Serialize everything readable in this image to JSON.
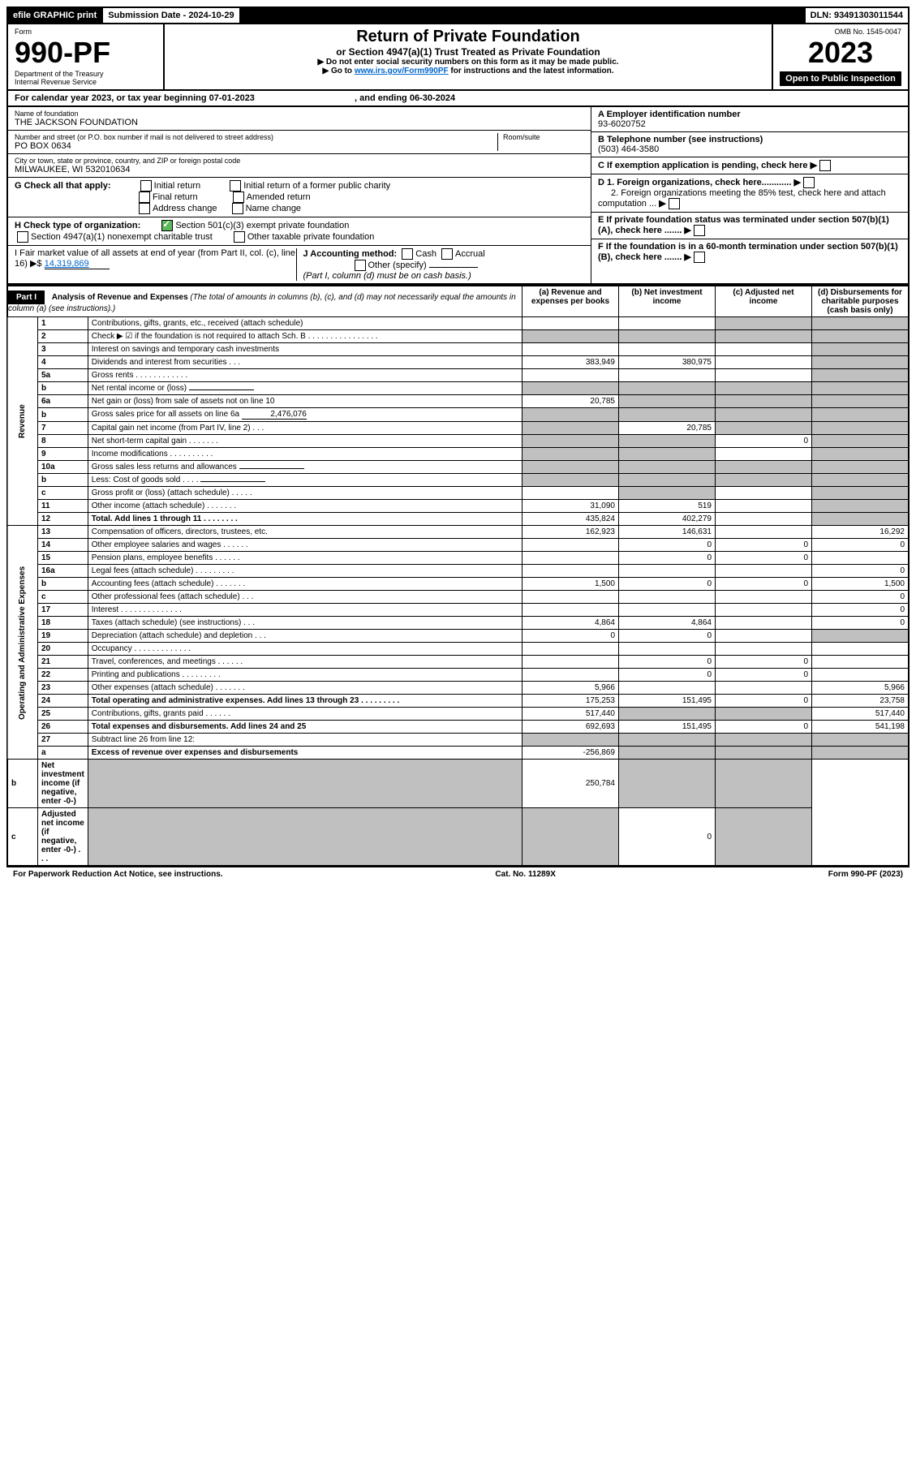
{
  "topbar": {
    "efile": "efile GRAPHIC print",
    "submission_label": "Submission Date - 2024-10-29",
    "dln_label": "DLN: 93491303011544"
  },
  "header": {
    "form_label": "Form",
    "form_no": "990-PF",
    "dept": "Department of the Treasury",
    "irs": "Internal Revenue Service",
    "title": "Return of Private Foundation",
    "subtitle": "or Section 4947(a)(1) Trust Treated as Private Foundation",
    "note1": "▶ Do not enter social security numbers on this form as it may be made public.",
    "note2_pre": "▶ Go to ",
    "note2_link": "www.irs.gov/Form990PF",
    "note2_post": " for instructions and the latest information.",
    "omb": "OMB No. 1545-0047",
    "year": "2023",
    "inspection": "Open to Public Inspection"
  },
  "cal_year": {
    "text_pre": "For calendar year 2023, or tax year beginning ",
    "begin": "07-01-2023",
    "mid": " , and ending ",
    "end": "06-30-2024"
  },
  "foundation": {
    "name_label": "Name of foundation",
    "name": "THE JACKSON FOUNDATION",
    "addr_label": "Number and street (or P.O. box number if mail is not delivered to street address)",
    "addr": "PO BOX 0634",
    "room_label": "Room/suite",
    "city_label": "City or town, state or province, country, and ZIP or foreign postal code",
    "city": "MILWAUKEE, WI  532010634",
    "ein_label": "A Employer identification number",
    "ein": "93-6020752",
    "phone_label": "B Telephone number (see instructions)",
    "phone": "(503) 464-3580",
    "c_label": "C If exemption application is pending, check here",
    "d1_label": "D 1. Foreign organizations, check here............",
    "d2_label": "2. Foreign organizations meeting the 85% test, check here and attach computation ...",
    "e_label": "E If private foundation status was terminated under section 507(b)(1)(A), check here .......",
    "f_label": "F If the foundation is in a 60-month termination under section 507(b)(1)(B), check here .......",
    "g_label": "G Check all that apply:",
    "g_initial": "Initial return",
    "g_initial_former": "Initial return of a former public charity",
    "g_final": "Final return",
    "g_amended": "Amended return",
    "g_address": "Address change",
    "g_name": "Name change",
    "h_label": "H Check type of organization:",
    "h_501c3": "Section 501(c)(3) exempt private foundation",
    "h_4947": "Section 4947(a)(1) nonexempt charitable trust",
    "h_other": "Other taxable private foundation",
    "i_label": "I Fair market value of all assets at end of year (from Part II, col. (c), line 16) ▶$",
    "i_value": "14,319,869",
    "j_label": "J Accounting method:",
    "j_cash": "Cash",
    "j_accrual": "Accrual",
    "j_other": "Other (specify)",
    "j_note": "(Part I, column (d) must be on cash basis.)"
  },
  "part1": {
    "label": "Part I",
    "title": "Analysis of Revenue and Expenses",
    "title_note": "(The total of amounts in columns (b), (c), and (d) may not necessarily equal the amounts in column (a) (see instructions).)",
    "col_a": "(a) Revenue and expenses per books",
    "col_b": "(b) Net investment income",
    "col_c": "(c) Adjusted net income",
    "col_d": "(d) Disbursements for charitable purposes (cash basis only)",
    "revenue_label": "Revenue",
    "expenses_label": "Operating and Administrative Expenses"
  },
  "rows": [
    {
      "no": "1",
      "desc": "Contributions, gifts, grants, etc., received (attach schedule)",
      "a": "",
      "b": "",
      "c": "grey",
      "d": "grey"
    },
    {
      "no": "2",
      "desc": "Check ▶ ☑ if the foundation is not required to attach Sch. B    .  .  .  .  .  .  .  .  .  .  .  .  .  .  .  .",
      "a": "grey",
      "b": "grey",
      "c": "grey",
      "d": "grey"
    },
    {
      "no": "3",
      "desc": "Interest on savings and temporary cash investments",
      "a": "",
      "b": "",
      "c": "",
      "d": "grey"
    },
    {
      "no": "4",
      "desc": "Dividends and interest from securities    .   .   .",
      "a": "383,949",
      "b": "380,975",
      "c": "",
      "d": "grey"
    },
    {
      "no": "5a",
      "desc": "Gross rents    .   .   .   .   .   .   .   .   .   .   .   .",
      "a": "",
      "b": "",
      "c": "",
      "d": "grey"
    },
    {
      "no": "b",
      "desc": "Net rental income or (loss)",
      "a": "grey",
      "b": "grey",
      "c": "grey",
      "d": "grey",
      "inline": ""
    },
    {
      "no": "6a",
      "desc": "Net gain or (loss) from sale of assets not on line 10",
      "a": "20,785",
      "b": "grey",
      "c": "grey",
      "d": "grey"
    },
    {
      "no": "b",
      "desc": "Gross sales price for all assets on line 6a",
      "a": "grey",
      "b": "grey",
      "c": "grey",
      "d": "grey",
      "inline": "2,476,076"
    },
    {
      "no": "7",
      "desc": "Capital gain net income (from Part IV, line 2)   .   .   .",
      "a": "grey",
      "b": "20,785",
      "c": "grey",
      "d": "grey"
    },
    {
      "no": "8",
      "desc": "Net short-term capital gain   .   .   .   .   .   .   .",
      "a": "grey",
      "b": "grey",
      "c": "0",
      "d": "grey"
    },
    {
      "no": "9",
      "desc": "Income modifications  .   .   .   .   .   .   .   .   .   .",
      "a": "grey",
      "b": "grey",
      "c": "",
      "d": "grey"
    },
    {
      "no": "10a",
      "desc": "Gross sales less returns and allowances",
      "a": "grey",
      "b": "grey",
      "c": "grey",
      "d": "grey",
      "inline": ""
    },
    {
      "no": "b",
      "desc": "Less: Cost of goods sold    .   .   .   .",
      "a": "grey",
      "b": "grey",
      "c": "grey",
      "d": "grey",
      "inline": ""
    },
    {
      "no": "c",
      "desc": "Gross profit or (loss) (attach schedule)    .   .   .   .   .",
      "a": "",
      "b": "grey",
      "c": "",
      "d": "grey"
    },
    {
      "no": "11",
      "desc": "Other income (attach schedule)   .   .   .   .   .   .   .",
      "a": "31,090",
      "b": "519",
      "c": "",
      "d": "grey"
    },
    {
      "no": "12",
      "desc": "Total. Add lines 1 through 11   .   .   .   .   .   .   .   .",
      "a": "435,824",
      "b": "402,279",
      "c": "",
      "d": "grey",
      "bold": true
    },
    {
      "no": "13",
      "desc": "Compensation of officers, directors, trustees, etc.",
      "a": "162,923",
      "b": "146,631",
      "c": "",
      "d": "16,292"
    },
    {
      "no": "14",
      "desc": "Other employee salaries and wages   .   .   .   .   .   .",
      "a": "",
      "b": "0",
      "c": "0",
      "d": "0"
    },
    {
      "no": "15",
      "desc": "Pension plans, employee benefits   .   .   .   .   .   .",
      "a": "",
      "b": "0",
      "c": "0",
      "d": ""
    },
    {
      "no": "16a",
      "desc": "Legal fees (attach schedule)  .   .   .   .   .   .   .   .   .",
      "a": "",
      "b": "",
      "c": "",
      "d": "0"
    },
    {
      "no": "b",
      "desc": "Accounting fees (attach schedule)  .   .   .   .   .   .   .",
      "a": "1,500",
      "b": "0",
      "c": "0",
      "d": "1,500"
    },
    {
      "no": "c",
      "desc": "Other professional fees (attach schedule)   .   .   .",
      "a": "",
      "b": "",
      "c": "",
      "d": "0"
    },
    {
      "no": "17",
      "desc": "Interest  .   .   .   .   .   .   .   .   .   .   .   .   .   .",
      "a": "",
      "b": "",
      "c": "",
      "d": "0"
    },
    {
      "no": "18",
      "desc": "Taxes (attach schedule) (see instructions)    .   .   .",
      "a": "4,864",
      "b": "4,864",
      "c": "",
      "d": "0"
    },
    {
      "no": "19",
      "desc": "Depreciation (attach schedule) and depletion   .   .   .",
      "a": "0",
      "b": "0",
      "c": "",
      "d": "grey"
    },
    {
      "no": "20",
      "desc": "Occupancy  .   .   .   .   .   .   .   .   .   .   .   .   .",
      "a": "",
      "b": "",
      "c": "",
      "d": ""
    },
    {
      "no": "21",
      "desc": "Travel, conferences, and meetings  .   .   .   .   .   .",
      "a": "",
      "b": "0",
      "c": "0",
      "d": ""
    },
    {
      "no": "22",
      "desc": "Printing and publications  .   .   .   .   .   .   .   .   .",
      "a": "",
      "b": "0",
      "c": "0",
      "d": ""
    },
    {
      "no": "23",
      "desc": "Other expenses (attach schedule)  .   .   .   .   .   .   .",
      "a": "5,966",
      "b": "",
      "c": "",
      "d": "5,966"
    },
    {
      "no": "24",
      "desc": "Total operating and administrative expenses. Add lines 13 through 23   .   .   .   .   .   .   .   .   .",
      "a": "175,253",
      "b": "151,495",
      "c": "0",
      "d": "23,758",
      "bold": true
    },
    {
      "no": "25",
      "desc": "Contributions, gifts, grants paid    .   .   .   .   .   .",
      "a": "517,440",
      "b": "grey",
      "c": "grey",
      "d": "517,440"
    },
    {
      "no": "26",
      "desc": "Total expenses and disbursements. Add lines 24 and 25",
      "a": "692,693",
      "b": "151,495",
      "c": "0",
      "d": "541,198",
      "bold": true
    },
    {
      "no": "27",
      "desc": "Subtract line 26 from line 12:",
      "a": "grey",
      "b": "grey",
      "c": "grey",
      "d": "grey"
    },
    {
      "no": "a",
      "desc": "Excess of revenue over expenses and disbursements",
      "a": "-256,869",
      "b": "grey",
      "c": "grey",
      "d": "grey",
      "bold": true
    },
    {
      "no": "b",
      "desc": "Net investment income (if negative, enter -0-)",
      "a": "grey",
      "b": "250,784",
      "c": "grey",
      "d": "grey",
      "bold": true
    },
    {
      "no": "c",
      "desc": "Adjusted net income (if negative, enter -0-)   .   .   .",
      "a": "grey",
      "b": "grey",
      "c": "0",
      "d": "grey",
      "bold": true
    }
  ],
  "footer": {
    "paperwork": "For Paperwork Reduction Act Notice, see instructions.",
    "cat": "Cat. No. 11289X",
    "form": "Form 990-PF (2023)"
  }
}
